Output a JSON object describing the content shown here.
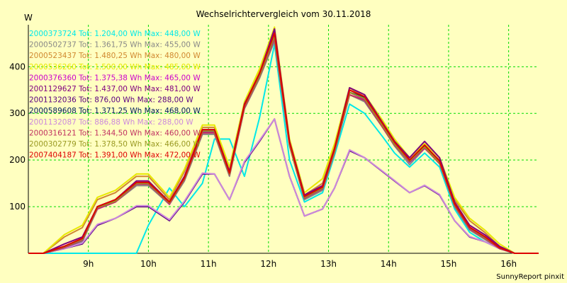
{
  "chart_data": {
    "type": "line",
    "title": "Wechselrichtervergleich vom 30.11.2018",
    "ylabel": "W",
    "xlabel": "",
    "credit": "SunnyReport pinxit",
    "xlim": [
      8.0,
      16.5
    ],
    "ylim": [
      0,
      490
    ],
    "grid": true,
    "legend_position": "top-left",
    "x_ticks": [
      {
        "value": 9,
        "label": "9h"
      },
      {
        "value": 10,
        "label": "10h"
      },
      {
        "value": 11,
        "label": "11h"
      },
      {
        "value": 12,
        "label": "12h"
      },
      {
        "value": 13,
        "label": "13h"
      },
      {
        "value": 14,
        "label": "14h"
      },
      {
        "value": 15,
        "label": "15h"
      },
      {
        "value": 16,
        "label": "16h"
      }
    ],
    "y_ticks": [
      {
        "value": 100,
        "label": "100"
      },
      {
        "value": 200,
        "label": "200"
      },
      {
        "value": 300,
        "label": "300"
      },
      {
        "value": 400,
        "label": "400"
      }
    ],
    "x": [
      8.0,
      8.25,
      8.6,
      8.9,
      9.15,
      9.45,
      9.8,
      10.0,
      10.35,
      10.6,
      10.9,
      11.1,
      11.35,
      11.6,
      11.85,
      12.1,
      12.35,
      12.6,
      12.9,
      13.1,
      13.35,
      13.6,
      13.9,
      14.1,
      14.35,
      14.6,
      14.85,
      15.1,
      15.35,
      15.6,
      15.85,
      16.1,
      16.5
    ],
    "series": [
      {
        "name": "2000373724",
        "legend": "2000373724 Tot: 1.204,00 Wh Max: 448,00 W",
        "color": "#00e8e8",
        "values": [
          0,
          0,
          0,
          0,
          0,
          0,
          0,
          60,
          140,
          100,
          150,
          245,
          245,
          165,
          290,
          448,
          200,
          110,
          130,
          210,
          320,
          300,
          250,
          215,
          185,
          215,
          185,
          95,
          45,
          25,
          10,
          0,
          0
        ]
      },
      {
        "name": "2000502737",
        "legend": "2000502737 Tot: 1.361,75 Wh Max: 455,00 W",
        "color": "#888888",
        "values": [
          0,
          0,
          10,
          25,
          95,
          110,
          145,
          145,
          105,
          155,
          255,
          255,
          165,
          310,
          375,
          455,
          230,
          115,
          135,
          215,
          340,
          325,
          270,
          230,
          190,
          225,
          195,
          100,
          50,
          30,
          10,
          0,
          0
        ]
      },
      {
        "name": "2000523437",
        "legend": "2000523437 Tot: 1.480,25 Wh Max: 480,00 W",
        "color": "#d08830",
        "values": [
          0,
          0,
          35,
          55,
          115,
          130,
          165,
          165,
          115,
          175,
          270,
          270,
          180,
          320,
          390,
          480,
          240,
          125,
          150,
          230,
          355,
          335,
          280,
          240,
          200,
          230,
          200,
          115,
          70,
          45,
          15,
          0,
          0
        ]
      },
      {
        "name": "2000536260",
        "legend": "2000536260 Tot: 1.500,00 Wh Max: 485,00 W",
        "color": "#e8e800",
        "values": [
          0,
          0,
          40,
          60,
          120,
          135,
          170,
          170,
          120,
          180,
          275,
          275,
          185,
          325,
          395,
          485,
          245,
          130,
          160,
          235,
          355,
          340,
          285,
          245,
          205,
          235,
          205,
          120,
          75,
          50,
          20,
          0,
          0
        ]
      },
      {
        "name": "2000376360",
        "legend": "2000376360 Tot: 1.375,38 Wh Max: 465,00 W",
        "color": "#cc00cc",
        "values": [
          0,
          0,
          15,
          30,
          95,
          110,
          150,
          150,
          105,
          160,
          260,
          260,
          170,
          315,
          380,
          465,
          235,
          120,
          140,
          220,
          345,
          330,
          275,
          235,
          195,
          225,
          195,
          105,
          55,
          35,
          12,
          0,
          0
        ]
      },
      {
        "name": "2001129627",
        "legend": "2001129627 Tot: 1.437,00 Wh Max: 481,00 W",
        "color": "#800080",
        "values": [
          0,
          0,
          20,
          35,
          100,
          115,
          155,
          155,
          110,
          165,
          265,
          265,
          175,
          320,
          385,
          481,
          240,
          125,
          145,
          225,
          355,
          340,
          280,
          240,
          205,
          240,
          205,
          110,
          60,
          40,
          15,
          0,
          0
        ]
      },
      {
        "name": "2001132036",
        "legend": "2001132036 Tot: 876,00 Wh Max: 288,00 W",
        "color": "#5a0080",
        "values": [
          0,
          0,
          10,
          20,
          60,
          75,
          100,
          100,
          70,
          110,
          170,
          170,
          115,
          195,
          240,
          288,
          165,
          80,
          95,
          140,
          220,
          205,
          175,
          155,
          130,
          145,
          125,
          70,
          35,
          25,
          10,
          0,
          0
        ]
      },
      {
        "name": "2000589608",
        "legend": "2000589608 Tot: 1.371,25 Wh Max: 468,00 W",
        "color": "#002060",
        "values": [
          0,
          0,
          12,
          28,
          98,
          112,
          150,
          150,
          108,
          160,
          262,
          262,
          172,
          318,
          382,
          468,
          235,
          118,
          140,
          222,
          345,
          335,
          275,
          235,
          200,
          230,
          195,
          105,
          55,
          35,
          12,
          0,
          0
        ]
      },
      {
        "name": "2001132087",
        "legend": "2001132087 Tot: 886,88 Wh Max: 288,00 W",
        "color": "#cc88dd",
        "values": [
          0,
          0,
          10,
          22,
          62,
          75,
          102,
          102,
          72,
          112,
          172,
          170,
          115,
          197,
          242,
          288,
          165,
          80,
          95,
          140,
          222,
          205,
          176,
          156,
          130,
          146,
          126,
          70,
          36,
          25,
          10,
          0,
          0
        ]
      },
      {
        "name": "2000316121",
        "legend": "2000316121 Tot: 1.344,50 Wh Max: 460,00 W",
        "color": "#c03060",
        "values": [
          0,
          0,
          12,
          28,
          96,
          110,
          148,
          148,
          106,
          158,
          258,
          258,
          168,
          312,
          378,
          460,
          232,
          118,
          138,
          218,
          340,
          328,
          270,
          232,
          196,
          226,
          192,
          102,
          52,
          32,
          10,
          0,
          0
        ]
      },
      {
        "name": "2000302779",
        "legend": "2000302779 Tot: 1.378,50 Wh Max: 466,00 W",
        "color": "#999922",
        "values": [
          0,
          0,
          14,
          30,
          98,
          112,
          150,
          150,
          108,
          160,
          262,
          262,
          170,
          316,
          380,
          466,
          234,
          120,
          140,
          220,
          345,
          332,
          274,
          234,
          198,
          228,
          195,
          104,
          55,
          34,
          12,
          0,
          0
        ]
      },
      {
        "name": "2007404187",
        "legend": "2007404187 Tot: 1.391,00 Wh Max: 472,00 W",
        "color": "#dd0000",
        "values": [
          0,
          0,
          15,
          32,
          100,
          115,
          152,
          152,
          110,
          162,
          265,
          265,
          172,
          318,
          385,
          472,
          238,
          122,
          142,
          224,
          350,
          336,
          278,
          238,
          200,
          232,
          198,
          106,
          56,
          36,
          12,
          0,
          0
        ]
      }
    ]
  }
}
